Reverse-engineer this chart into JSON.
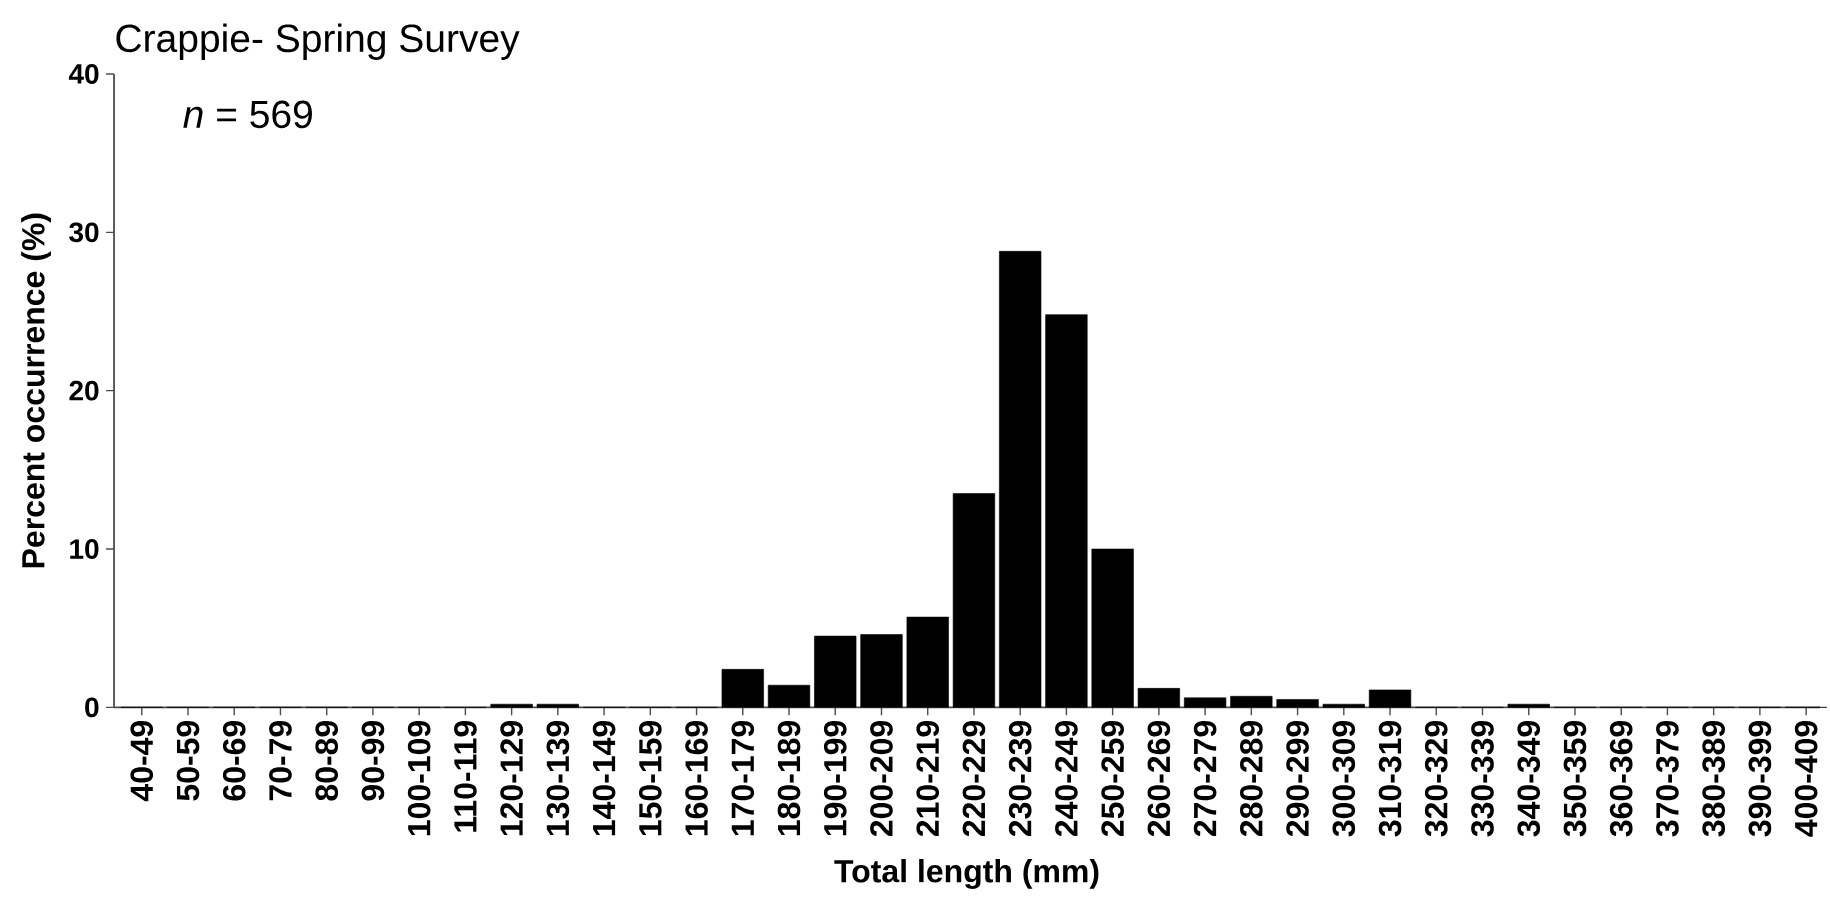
{
  "chart_data": {
    "type": "bar",
    "title": "Crappie- Spring Survey",
    "xlabel": "Total length (mm)",
    "ylabel": "Percent occurrence (%)",
    "annotations": [
      "*n* = 569"
    ],
    "categories": [
      "40-49",
      "50-59",
      "60-69",
      "70-79",
      "80-89",
      "90-99",
      "100-109",
      "110-119",
      "120-129",
      "130-139",
      "140-149",
      "150-159",
      "160-169",
      "170-179",
      "180-189",
      "190-199",
      "200-209",
      "210-219",
      "220-229",
      "230-239",
      "240-249",
      "250-259",
      "260-269",
      "270-279",
      "280-289",
      "290-299",
      "300-309",
      "310-319",
      "320-329",
      "330-339",
      "340-349",
      "350-359",
      "360-369",
      "370-379",
      "380-389",
      "390-399",
      "400-409"
    ],
    "values": [
      0,
      0,
      0,
      0,
      0,
      0,
      0,
      0,
      0.2,
      0.2,
      0,
      0,
      0,
      2.4,
      1.4,
      4.5,
      4.6,
      5.7,
      13.5,
      28.8,
      24.8,
      10.0,
      1.2,
      0.6,
      0.7,
      0.5,
      0.2,
      1.1,
      0,
      0,
      0.2,
      0,
      0,
      0,
      0,
      0,
      0
    ],
    "color": "#000000",
    "ylim": [
      0,
      40
    ],
    "yticks": [
      0,
      10,
      20,
      30,
      40
    ]
  }
}
